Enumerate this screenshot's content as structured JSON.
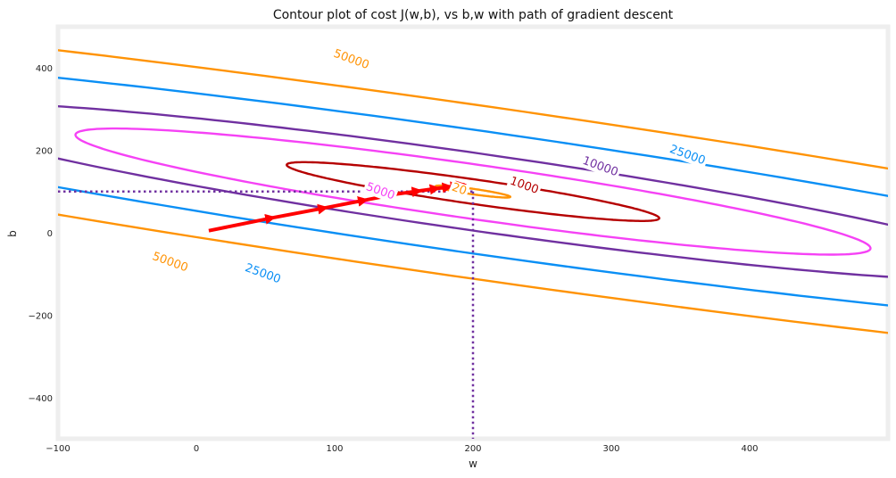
{
  "chart_data": {
    "type": "contour",
    "title": "Contour plot of cost J(w,b), vs b,w with path of gradient descent",
    "xlabel": "w",
    "ylabel": "b",
    "xlim": [
      -100,
      500
    ],
    "ylim": [
      -500,
      500
    ],
    "x_ticks": [
      -100,
      0,
      100,
      200,
      300,
      400
    ],
    "y_ticks": [
      -400,
      -200,
      0,
      200,
      400
    ],
    "x_tick_labels": [
      "−100",
      "0",
      "100",
      "200",
      "300",
      "400"
    ],
    "y_tick_labels": [
      "−400",
      "−200",
      "0",
      "200",
      "400"
    ],
    "center": {
      "w": 200,
      "b": 100
    },
    "contours": [
      {
        "level": 1000,
        "label": "1000",
        "color": "#b50000",
        "semi_major": 150,
        "semi_minor": 27,
        "angle_deg": -26.6,
        "label_pos": [
          237,
          114
        ]
      },
      {
        "level": 5000,
        "label": "5000",
        "color": "#f542f5",
        "semi_major": 320,
        "semi_minor": 60,
        "angle_deg": -26.6,
        "label_pos": [
          133,
          100
        ]
      },
      {
        "level": 10000,
        "label": "10000",
        "color": "#7030a0",
        "semi_major": 450,
        "semi_minor": 85,
        "angle_deg": -26.6,
        "label_pos": [
          292,
          160
        ]
      },
      {
        "level": 25000,
        "label": "25000",
        "color": "#0a8ff5",
        "semi_major": 712,
        "semi_minor": 135,
        "angle_deg": -26.6,
        "label_pos": [
          [
            355,
            188
          ],
          [
            48,
            -100
          ]
        ]
      },
      {
        "level": 50000,
        "label": "50000",
        "color": "#ff9305",
        "semi_major": 1006,
        "semi_minor": 190,
        "angle_deg": -26.6,
        "label_pos": [
          [
            112,
            420
          ],
          [
            -19,
            -72
          ]
        ]
      },
      {
        "level": 20,
        "label": "20",
        "color": "#ff9305",
        "semi_major": 30,
        "semi_minor": 6,
        "angle_deg": -26.6,
        "label_pos": [
          190,
          105
        ]
      }
    ],
    "target_lines": {
      "w": 200,
      "b": 100,
      "color": "#7030a0",
      "style": "dotted"
    },
    "gradient_descent_path": {
      "color": "#ff0000",
      "w": [
        9,
        56,
        94,
        123,
        145,
        162,
        175,
        184,
        190,
        194
      ],
      "b": [
        5,
        37,
        61,
        80,
        94,
        102,
        108,
        112,
        115,
        117
      ]
    }
  }
}
